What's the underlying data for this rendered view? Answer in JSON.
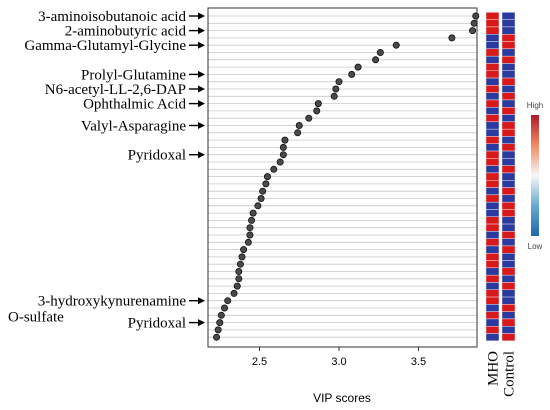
{
  "chart_data": {
    "type": "scatter",
    "title": "",
    "xlabel": "VIP scores",
    "ylabel": "",
    "xlim": [
      2.2,
      3.9
    ],
    "xticks": [
      "2.5",
      "3.0",
      "3.5"
    ],
    "xtick_values": [
      2.5,
      3.0,
      3.5
    ],
    "grid": "horizontal lines",
    "vip_scores": [
      3.86,
      3.85,
      3.84,
      3.71,
      3.36,
      3.26,
      3.23,
      3.12,
      3.08,
      3.0,
      2.98,
      2.97,
      2.87,
      2.86,
      2.81,
      2.75,
      2.74,
      2.66,
      2.65,
      2.65,
      2.63,
      2.59,
      2.55,
      2.54,
      2.52,
      2.51,
      2.49,
      2.46,
      2.45,
      2.44,
      2.44,
      2.43,
      2.4,
      2.39,
      2.38,
      2.37,
      2.37,
      2.36,
      2.34,
      2.3,
      2.28,
      2.26,
      2.25,
      2.24,
      2.23
    ],
    "annotations": [
      {
        "text": "3-aminoisobutanoic acid",
        "row": 0
      },
      {
        "text": "2-aminobutyric acid",
        "row": 2
      },
      {
        "text": "Gamma-Glutamyl-Glycine",
        "row": 4
      },
      {
        "text": "Prolyl-Glutamine",
        "row": 8
      },
      {
        "text": "N6-acetyl-LL-2,6-DAP",
        "row": 10
      },
      {
        "text": "Ophthalmic Acid",
        "row": 12
      },
      {
        "text": "Valyl-Asparagine",
        "row": 15
      },
      {
        "text": "Pyridoxal",
        "row": 19
      },
      {
        "text": "3-hydroxykynurenamine",
        "row": 39
      },
      {
        "text": "O-sulfate",
        "row": null
      },
      {
        "text": "Pyridoxal",
        "row": 42
      }
    ],
    "heatmap": {
      "columns": [
        "MHO",
        "Control"
      ],
      "mho_high_rows": [
        0,
        1,
        2,
        5,
        7,
        8,
        10,
        12,
        14,
        17,
        19,
        20,
        22,
        23,
        25,
        28,
        29,
        31,
        33,
        34,
        36,
        38,
        39,
        41,
        43
      ],
      "colors": {
        "high": "#d7191c",
        "low": "#2b3a9e"
      }
    },
    "legend": {
      "high_label": "High",
      "low_label": "Low",
      "position": "right"
    }
  }
}
